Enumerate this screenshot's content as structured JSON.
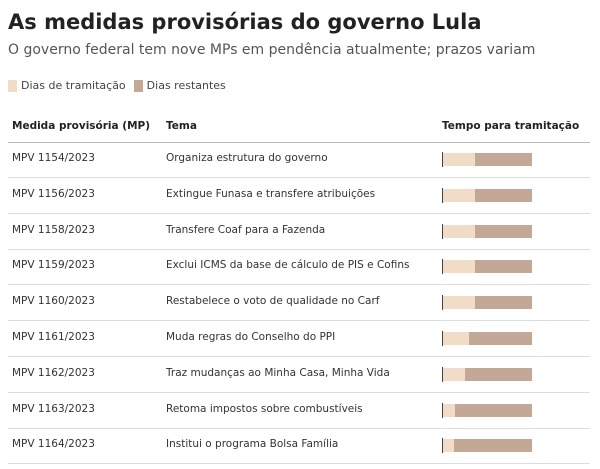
{
  "header": {
    "title": "As medidas provisórias do governo Lula",
    "subtitle": "O governo federal tem nove MPs em pendência atualmente; prazos variam"
  },
  "legend": [
    {
      "name": "Dias de tramitação",
      "color": "#f1dcc8"
    },
    {
      "name": "Dias restantes",
      "color": "#c4a897"
    }
  ],
  "table": {
    "columns": [
      "Medida provisória (MP)",
      "Tema",
      "Tempo para tramitação"
    ],
    "xlim": [
      0,
      120
    ],
    "rows": [
      {
        "mp": "MPV 1154/2023",
        "tema": "Organiza estrutura do governo",
        "values": [
          44,
          76
        ]
      },
      {
        "mp": "MPV 1156/2023",
        "tema": "Extingue Funasa e transfere atribuições",
        "values": [
          44,
          76
        ]
      },
      {
        "mp": "MPV 1158/2023",
        "tema": "Transfere Coaf para a Fazenda",
        "values": [
          44,
          76
        ]
      },
      {
        "mp": "MPV 1159/2023",
        "tema": "Exclui ICMS da base de cálculo de PIS e Cofins",
        "values": [
          44,
          76
        ]
      },
      {
        "mp": "MPV 1160/2023",
        "tema": "Restabelece o voto de qualidade no Carf",
        "values": [
          44,
          76
        ]
      },
      {
        "mp": "MPV 1161/2023",
        "tema": "Muda regras do Conselho do PPI",
        "values": [
          36,
          84
        ]
      },
      {
        "mp": "MPV 1162/2023",
        "tema": "Traz mudanças ao Minha Casa, Minha Vida",
        "values": [
          31,
          89
        ]
      },
      {
        "mp": "MPV 1163/2023",
        "tema": "Retoma impostos sobre combustíveis",
        "values": [
          17,
          103
        ]
      },
      {
        "mp": "MPV 1164/2023",
        "tema": "Institui o programa Bolsa Família",
        "values": [
          16,
          104
        ]
      }
    ]
  }
}
